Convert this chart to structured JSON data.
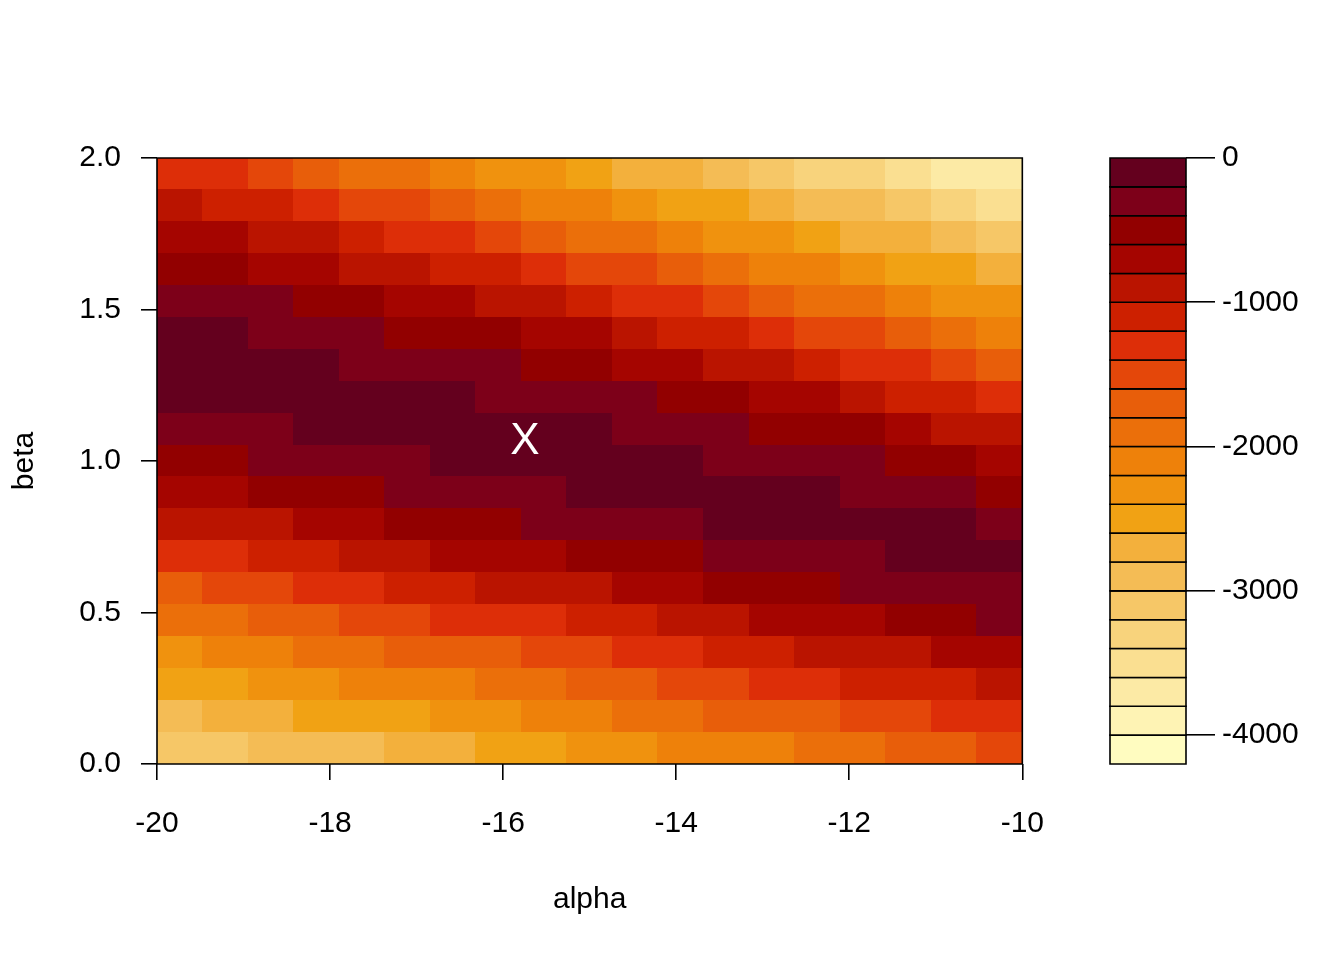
{
  "chart_data": {
    "type": "heatmap",
    "xlabel": "alpha",
    "ylabel": "beta",
    "x": [
      -19.737,
      -19.211,
      -18.684,
      -18.158,
      -17.632,
      -17.105,
      -16.579,
      -16.053,
      -15.526,
      -15.0,
      -14.474,
      -13.947,
      -13.421,
      -12.895,
      -12.368,
      -11.842,
      -11.316,
      -10.789,
      -10.263
    ],
    "y": [
      1.947,
      1.842,
      1.737,
      1.632,
      1.526,
      1.421,
      1.316,
      1.211,
      1.105,
      1.0,
      0.895,
      0.789,
      0.684,
      0.579,
      0.474,
      0.368,
      0.263,
      0.158,
      0.053
    ],
    "cells": [
      [
        -1300,
        -1300,
        -1500,
        -1700,
        -1900,
        -1900,
        -2100,
        -2300,
        -2300,
        -2500,
        -2700,
        -2700,
        -2900,
        -3100,
        -3300,
        -3300,
        -3500,
        -3700,
        -3700
      ],
      [
        -900,
        -1100,
        -1100,
        -1300,
        -1500,
        -1500,
        -1700,
        -1900,
        -2100,
        -2100,
        -2300,
        -2500,
        -2500,
        -2700,
        -2900,
        -2900,
        -3100,
        -3300,
        -3500
      ],
      [
        -700,
        -700,
        -900,
        -900,
        -1100,
        -1300,
        -1300,
        -1500,
        -1700,
        -1900,
        -1900,
        -2100,
        -2300,
        -2300,
        -2500,
        -2700,
        -2700,
        -2900,
        -3100
      ],
      [
        -500,
        -500,
        -700,
        -700,
        -900,
        -900,
        -1100,
        -1100,
        -1300,
        -1500,
        -1500,
        -1700,
        -1900,
        -2100,
        -2100,
        -2300,
        -2500,
        -2500,
        -2700
      ],
      [
        -300,
        -300,
        -300,
        -500,
        -500,
        -700,
        -700,
        -900,
        -900,
        -1100,
        -1300,
        -1300,
        -1500,
        -1700,
        -1900,
        -1900,
        -2100,
        -2300,
        -2300
      ],
      [
        -100,
        -100,
        -300,
        -300,
        -300,
        -500,
        -500,
        -500,
        -700,
        -700,
        -900,
        -1100,
        -1100,
        -1300,
        -1500,
        -1500,
        -1700,
        -1900,
        -2100
      ],
      [
        -100,
        -100,
        -100,
        -100,
        -300,
        -300,
        -300,
        -300,
        -500,
        -500,
        -700,
        -700,
        -900,
        -900,
        -1100,
        -1300,
        -1300,
        -1500,
        -1700
      ],
      [
        -100,
        -100,
        -100,
        -100,
        -100,
        -100,
        -100,
        -300,
        -300,
        -300,
        -300,
        -500,
        -500,
        -700,
        -700,
        -900,
        -1100,
        -1100,
        -1300
      ],
      [
        -300,
        -300,
        -300,
        -100,
        -100,
        -100,
        -100,
        -100,
        -100,
        -100,
        -300,
        -300,
        -300,
        -500,
        -500,
        -500,
        -700,
        -900,
        -900
      ],
      [
        -500,
        -500,
        -300,
        -300,
        -300,
        -300,
        -100,
        -100,
        -100,
        -100,
        -100,
        -100,
        -300,
        -300,
        -300,
        -300,
        -500,
        -500,
        -700
      ],
      [
        -700,
        -700,
        -500,
        -500,
        -500,
        -300,
        -300,
        -300,
        -300,
        -100,
        -100,
        -100,
        -100,
        -100,
        -100,
        -300,
        -300,
        -300,
        -500
      ],
      [
        -900,
        -900,
        -900,
        -700,
        -700,
        -500,
        -500,
        -500,
        -300,
        -300,
        -300,
        -300,
        -100,
        -100,
        -100,
        -100,
        -100,
        -100,
        -300
      ],
      [
        -1300,
        -1300,
        -1100,
        -1100,
        -900,
        -900,
        -700,
        -700,
        -700,
        -500,
        -500,
        -500,
        -300,
        -300,
        -300,
        -300,
        -100,
        -100,
        -100
      ],
      [
        -1700,
        -1500,
        -1500,
        -1300,
        -1300,
        -1100,
        -1100,
        -900,
        -900,
        -900,
        -700,
        -700,
        -500,
        -500,
        -500,
        -300,
        -300,
        -300,
        -300
      ],
      [
        -1900,
        -1900,
        -1700,
        -1700,
        -1500,
        -1500,
        -1300,
        -1300,
        -1300,
        -1100,
        -1100,
        -900,
        -900,
        -700,
        -700,
        -700,
        -500,
        -500,
        -300
      ],
      [
        -2300,
        -2100,
        -2100,
        -1900,
        -1900,
        -1700,
        -1700,
        -1700,
        -1500,
        -1500,
        -1300,
        -1300,
        -1100,
        -1100,
        -900,
        -900,
        -900,
        -700,
        -700
      ],
      [
        -2500,
        -2500,
        -2300,
        -2300,
        -2100,
        -2100,
        -2100,
        -1900,
        -1900,
        -1700,
        -1700,
        -1500,
        -1500,
        -1300,
        -1300,
        -1100,
        -1100,
        -1100,
        -900
      ],
      [
        -2900,
        -2700,
        -2700,
        -2500,
        -2500,
        -2500,
        -2300,
        -2300,
        -2100,
        -2100,
        -1900,
        -1900,
        -1700,
        -1700,
        -1700,
        -1500,
        -1500,
        -1300,
        -1300
      ],
      [
        -3100,
        -3100,
        -2900,
        -2900,
        -2900,
        -2700,
        -2700,
        -2500,
        -2500,
        -2300,
        -2300,
        -2100,
        -2100,
        -2100,
        -1900,
        -1900,
        -1700,
        -1700,
        -1500
      ]
    ],
    "colors": [
      "#fffcc0",
      "#fef3b4",
      "#fceaa5",
      "#fadf91",
      "#f8d37c",
      "#f6c767",
      "#f4bc55",
      "#f3b03c",
      "#f1a214",
      "#f0920e",
      "#ee810a",
      "#eb6f0a",
      "#e85e0a",
      "#e4470a",
      "#dd2e08",
      "#cd2000",
      "#ba1400",
      "#a50500",
      "#920000",
      "#7d0019",
      "#64001e"
    ],
    "xlim": [
      -20,
      -10
    ],
    "xticks": [
      -20,
      -18,
      -16,
      -14,
      -12,
      -10
    ],
    "ylim": [
      0,
      2
    ],
    "yticks": [
      {
        "value": 0,
        "label": "0.0"
      },
      {
        "value": 0.5,
        "label": "0.5"
      },
      {
        "value": 1,
        "label": "1.0"
      },
      {
        "value": 1.5,
        "label": "1.5"
      },
      {
        "value": 2,
        "label": "2.0"
      }
    ],
    "clim": [
      -4200,
      0
    ],
    "cticks": [
      0,
      -1000,
      -2000,
      -3000,
      -4000
    ],
    "annotations": [
      "X"
    ]
  }
}
